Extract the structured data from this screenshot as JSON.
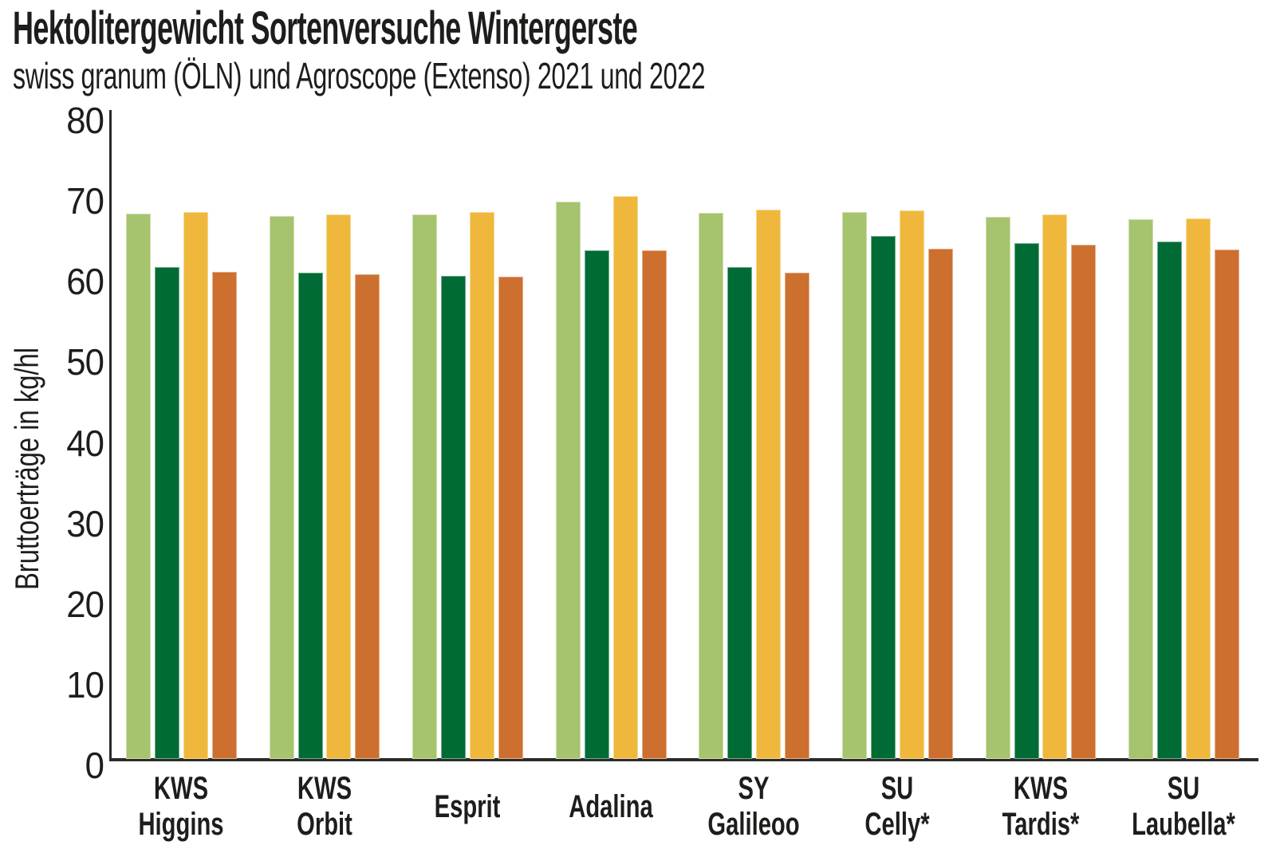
{
  "figure": {
    "title": "Hektolitergewicht Sortenversuche Wintergerste",
    "subtitle": "swiss granum (ÖLN) und Agroscope (Extenso) 2021 und 2022"
  },
  "chart_data": {
    "type": "bar",
    "title": "Hektolitergewicht Sortenversuche Wintergerste",
    "subtitle": "swiss granum (ÖLN) und Agroscope (Extenso) 2021 und 2022",
    "xlabel": "",
    "ylabel": "Bruttoerträge in kg/hl",
    "unit": "kg/hl",
    "ylim": [
      0,
      80
    ],
    "yticks": [
      0,
      10,
      20,
      30,
      40,
      50,
      60,
      70,
      80
    ],
    "grid": false,
    "legend_position": "none",
    "categories": [
      "KWS Higgins",
      "KWS Orbit",
      "Esprit",
      "Adalina",
      "SY Galileoo",
      "SU Celly*",
      "KWS Tardis*",
      "SU Laubella*"
    ],
    "series": [
      {
        "name": "light-green",
        "color": "#A6C36D",
        "values": [
          67.6,
          67.3,
          67.5,
          69.1,
          67.7,
          67.8,
          67.2,
          66.9
        ]
      },
      {
        "name": "dark-green",
        "color": "#006B34",
        "values": [
          61.0,
          60.3,
          59.9,
          63.1,
          61.0,
          64.9,
          64.0,
          64.2
        ]
      },
      {
        "name": "yellow",
        "color": "#EFB83C",
        "values": [
          67.8,
          67.5,
          67.8,
          69.8,
          68.1,
          68.0,
          67.5,
          67.0
        ]
      },
      {
        "name": "orange",
        "color": "#CD6F2E",
        "values": [
          60.4,
          60.1,
          59.8,
          63.1,
          60.3,
          63.3,
          63.8,
          63.2
        ]
      }
    ]
  },
  "colors": {
    "background": "#ffffff",
    "text": "#1d1d1b",
    "axis": "#2a2a28",
    "bar_light_green": "#A6C36D",
    "bar_dark_green": "#006B34",
    "bar_yellow": "#EFB83C",
    "bar_orange": "#CD6F2E"
  }
}
